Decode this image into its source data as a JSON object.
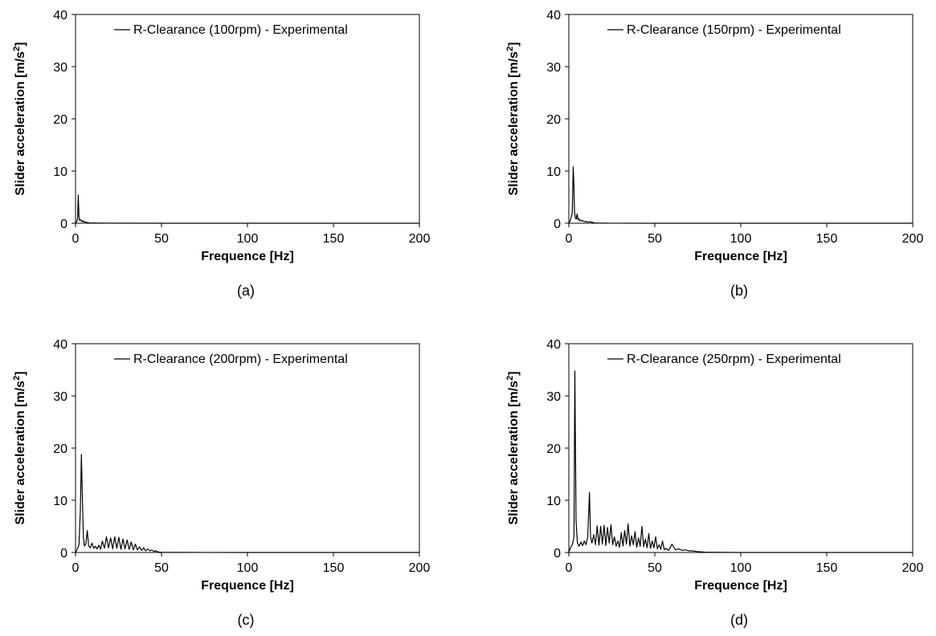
{
  "chart_data": [
    {
      "type": "line",
      "caption": "(a)",
      "xlabel": "Frequence [Hz]",
      "ylabel": "Slider acceleration [m/s",
      "ylabel_sup": "2",
      "ylabel_end": "]",
      "xlim": [
        0,
        200
      ],
      "ylim": [
        0,
        40
      ],
      "xticks": [
        0,
        50,
        100,
        150,
        200
      ],
      "yticks": [
        0,
        10,
        20,
        30,
        40
      ],
      "legend_position": "top-right",
      "grid": false,
      "series": [
        {
          "name": "R-Clearance (100rpm) - Experimental",
          "x": [
            0,
            0.8,
            1.2,
            1.6,
            2.0,
            2.4,
            2.8,
            3.2,
            3.6,
            4.0,
            4.4,
            4.8,
            5.2,
            5.6,
            6.0,
            6.5,
            7.0,
            8,
            10,
            15,
            20,
            50,
            100,
            150,
            200
          ],
          "y": [
            0,
            0.4,
            1.0,
            5.4,
            1.2,
            0.5,
            0.7,
            0.6,
            0.4,
            0.3,
            0.5,
            0.3,
            0.2,
            0.3,
            0.2,
            0.1,
            0.15,
            0.05,
            0.05,
            0.02,
            0.01,
            0,
            0,
            0,
            0
          ]
        }
      ]
    },
    {
      "type": "line",
      "caption": "(b)",
      "xlabel": "Frequence [Hz]",
      "ylabel": "Slider acceleration [m/s",
      "ylabel_sup": "2",
      "ylabel_end": "]",
      "xlim": [
        0,
        200
      ],
      "ylim": [
        0,
        40
      ],
      "xticks": [
        0,
        50,
        100,
        150,
        200
      ],
      "yticks": [
        0,
        10,
        20,
        30,
        40
      ],
      "legend_position": "top-right",
      "grid": false,
      "series": [
        {
          "name": "R-Clearance (150rpm) - Experimental",
          "x": [
            0,
            0.8,
            1.5,
            2.0,
            2.5,
            2.9,
            3.3,
            3.8,
            4.3,
            4.8,
            5.3,
            5.8,
            6.3,
            7.0,
            7.6,
            8.2,
            9.0,
            10,
            11,
            12,
            13,
            14,
            15,
            20,
            50,
            100,
            150,
            200
          ],
          "y": [
            0,
            0.5,
            1.3,
            2.0,
            10.8,
            7.8,
            2.2,
            1.0,
            0.8,
            1.8,
            0.7,
            0.9,
            0.5,
            0.6,
            0.4,
            0.5,
            0.3,
            0.35,
            0.2,
            0.3,
            0.2,
            0.15,
            0.05,
            0.02,
            0,
            0,
            0,
            0
          ]
        }
      ]
    },
    {
      "type": "line",
      "caption": "(c)",
      "xlabel": "Frequence [Hz]",
      "ylabel": "Slider acceleration [m/s",
      "ylabel_sup": "2",
      "ylabel_end": "]",
      "xlim": [
        0,
        200
      ],
      "ylim": [
        0,
        40
      ],
      "xticks": [
        0,
        50,
        100,
        150,
        200
      ],
      "yticks": [
        0,
        10,
        20,
        30,
        40
      ],
      "legend_position": "top-right",
      "grid": false,
      "series": [
        {
          "name": "R-Clearance (200rpm) - Experimental",
          "x": [
            0,
            1,
            2,
            2.8,
            3.4,
            4.0,
            4.6,
            5.2,
            6.0,
            6.8,
            7.6,
            8.6,
            9.6,
            10.6,
            11.6,
            12.6,
            13.6,
            14.6,
            15.6,
            16.8,
            18,
            19.2,
            20.4,
            21.6,
            22.8,
            24,
            25.2,
            26.4,
            27.6,
            28.8,
            30,
            31.2,
            32.4,
            33.6,
            34.8,
            36,
            37.2,
            38.4,
            39.6,
            40.8,
            42,
            43.2,
            44.4,
            45.6,
            46.8,
            48,
            50,
            60,
            100,
            150,
            200
          ],
          "y": [
            0,
            0.6,
            1.5,
            8.0,
            18.8,
            10.0,
            3.0,
            1.2,
            1.6,
            4.2,
            1.3,
            0.9,
            1.8,
            0.8,
            1.2,
            0.7,
            1.4,
            0.6,
            2.2,
            0.8,
            3.0,
            0.9,
            2.8,
            0.7,
            3.0,
            0.8,
            2.9,
            0.6,
            2.6,
            0.7,
            2.4,
            0.6,
            2.0,
            0.5,
            1.6,
            0.5,
            1.1,
            0.4,
            0.9,
            0.3,
            0.7,
            0.3,
            0.5,
            0.2,
            0.3,
            0.1,
            0.05,
            0.02,
            0,
            0,
            0
          ]
        }
      ]
    },
    {
      "type": "line",
      "caption": "(d)",
      "xlabel": "Frequence [Hz]",
      "ylabel": "Slider acceleration [m/s",
      "ylabel_sup": "2",
      "ylabel_end": "]",
      "xlim": [
        0,
        200
      ],
      "ylim": [
        0,
        40
      ],
      "xticks": [
        0,
        50,
        100,
        150,
        200
      ],
      "yticks": [
        0,
        10,
        20,
        30,
        40
      ],
      "legend_position": "top-right",
      "grid": false,
      "series": [
        {
          "name": "R-Clearance (250rpm) - Experimental",
          "x": [
            0,
            1,
            2,
            3,
            3.5,
            4.2,
            5,
            6,
            7,
            8,
            9,
            10,
            11,
            12,
            12.6,
            13.4,
            14.5,
            15.5,
            16.5,
            17.5,
            18.5,
            19.5,
            20.5,
            21.5,
            22.5,
            23.5,
            24.5,
            25.5,
            26.5,
            27.5,
            28.5,
            29.5,
            30.5,
            31.5,
            32.5,
            33.5,
            34.5,
            35.5,
            36.5,
            37.5,
            38.5,
            39.5,
            40.5,
            41.5,
            42.5,
            43.5,
            44.5,
            45.5,
            46.5,
            47.5,
            48.5,
            49.5,
            50.5,
            51.5,
            52.5,
            53.5,
            54.5,
            55.5,
            56.5,
            58,
            60,
            62,
            64,
            66,
            68,
            70,
            72,
            74,
            80,
            100,
            150,
            200
          ],
          "y": [
            0,
            1.0,
            1.5,
            3.0,
            34.8,
            6.0,
            1.8,
            1.2,
            2.0,
            1.3,
            2.2,
            1.5,
            3.0,
            11.5,
            3.0,
            1.8,
            3.4,
            1.5,
            5.1,
            1.4,
            5.0,
            1.6,
            5.2,
            1.3,
            4.8,
            1.8,
            5.3,
            1.5,
            3.0,
            1.2,
            2.2,
            1.0,
            3.8,
            1.2,
            4.2,
            1.6,
            5.5,
            1.2,
            3.2,
            1.5,
            4.0,
            1.0,
            2.8,
            1.2,
            5.0,
            1.1,
            2.6,
            0.9,
            3.6,
            0.8,
            2.2,
            0.9,
            3.0,
            0.7,
            1.5,
            0.6,
            2.2,
            0.5,
            0.8,
            0.4,
            1.6,
            0.5,
            0.7,
            0.4,
            0.5,
            0.3,
            0.3,
            0.2,
            0.05,
            0,
            0,
            0
          ]
        }
      ]
    }
  ]
}
